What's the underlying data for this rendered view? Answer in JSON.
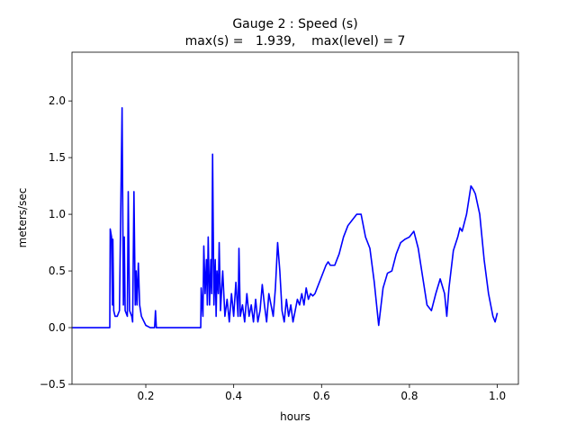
{
  "chart_data": {
    "type": "line",
    "title": "Gauge 2 : Speed (s)",
    "subtitle": "max(s) =   1.939,    max(level) = 7",
    "x_label": "hours",
    "y_label": "meters/sec",
    "xlim": [
      0.032,
      1.048
    ],
    "ylim": [
      -0.5,
      2.43
    ],
    "xticks": [
      0.2,
      0.4,
      0.6,
      0.8,
      {
        "value": 1,
        "label": "1.0"
      }
    ],
    "yticks": [
      {
        "value": -0.5,
        "label": "−0.5"
      },
      {
        "value": 0,
        "label": "0.0"
      },
      0.5,
      {
        "value": 1,
        "label": "1.0"
      },
      1.5,
      {
        "value": 2,
        "label": "2.0"
      }
    ],
    "series": [
      {
        "name": "speed",
        "color": "#0000ff",
        "x": [
          0.033,
          0.118,
          0.119,
          0.122,
          0.124,
          0.125,
          0.127,
          0.13,
          0.135,
          0.14,
          0.146,
          0.149,
          0.151,
          0.153,
          0.158,
          0.16,
          0.163,
          0.168,
          0.17,
          0.173,
          0.176,
          0.178,
          0.18,
          0.183,
          0.186,
          0.19,
          0.2,
          0.21,
          0.22,
          0.222,
          0.224,
          0.325,
          0.326,
          0.33,
          0.332,
          0.335,
          0.338,
          0.34,
          0.342,
          0.345,
          0.348,
          0.35,
          0.352,
          0.355,
          0.358,
          0.36,
          0.362,
          0.365,
          0.367,
          0.37,
          0.375,
          0.38,
          0.385,
          0.39,
          0.395,
          0.4,
          0.405,
          0.41,
          0.412,
          0.415,
          0.42,
          0.425,
          0.43,
          0.435,
          0.44,
          0.445,
          0.45,
          0.455,
          0.46,
          0.465,
          0.47,
          0.475,
          0.48,
          0.485,
          0.49,
          0.495,
          0.5,
          0.505,
          0.51,
          0.515,
          0.52,
          0.525,
          0.53,
          0.535,
          0.54,
          0.545,
          0.55,
          0.555,
          0.56,
          0.565,
          0.57,
          0.575,
          0.58,
          0.585,
          0.59,
          0.6,
          0.61,
          0.615,
          0.62,
          0.63,
          0.635,
          0.64,
          0.65,
          0.66,
          0.67,
          0.68,
          0.69,
          0.7,
          0.71,
          0.72,
          0.73,
          0.74,
          0.75,
          0.76,
          0.77,
          0.78,
          0.79,
          0.8,
          0.81,
          0.82,
          0.83,
          0.84,
          0.85,
          0.86,
          0.87,
          0.88,
          0.885,
          0.89,
          0.9,
          0.91,
          0.915,
          0.92,
          0.93,
          0.94,
          0.945,
          0.95,
          0.96,
          0.97,
          0.98,
          0.99,
          0.995,
          1.0
        ],
        "values": [
          0,
          0,
          0.87,
          0.8,
          0.2,
          0.78,
          0.15,
          0.1,
          0.1,
          0.15,
          1.939,
          0.2,
          0.8,
          0.15,
          0.1,
          1.2,
          0.15,
          0.1,
          0.05,
          1.2,
          0.2,
          0.5,
          0.2,
          0.57,
          0.2,
          0.1,
          0.02,
          0,
          0,
          0.15,
          0,
          0,
          0.35,
          0.1,
          0.72,
          0.3,
          0.6,
          0.2,
          0.8,
          0.2,
          0.6,
          0.3,
          1.53,
          0.2,
          0.6,
          0.1,
          0.5,
          0.3,
          0.75,
          0.15,
          0.5,
          0.1,
          0.25,
          0.05,
          0.3,
          0.1,
          0.4,
          0.1,
          0.7,
          0.1,
          0.2,
          0.05,
          0.3,
          0.1,
          0.2,
          0.05,
          0.25,
          0.05,
          0.15,
          0.38,
          0.2,
          0.05,
          0.3,
          0.2,
          0.1,
          0.35,
          0.75,
          0.5,
          0.15,
          0.05,
          0.25,
          0.1,
          0.2,
          0.05,
          0.15,
          0.25,
          0.2,
          0.3,
          0.2,
          0.35,
          0.25,
          0.3,
          0.28,
          0.3,
          0.35,
          0.45,
          0.55,
          0.58,
          0.55,
          0.55,
          0.6,
          0.65,
          0.8,
          0.9,
          0.95,
          1.0,
          1.0,
          0.8,
          0.7,
          0.4,
          0.02,
          0.35,
          0.48,
          0.5,
          0.65,
          0.75,
          0.78,
          0.8,
          0.85,
          0.7,
          0.45,
          0.2,
          0.15,
          0.3,
          0.43,
          0.3,
          0.1,
          0.35,
          0.68,
          0.8,
          0.88,
          0.85,
          1.0,
          1.25,
          1.22,
          1.18,
          1.0,
          0.6,
          0.3,
          0.1,
          0.05,
          0.13
        ]
      }
    ]
  }
}
